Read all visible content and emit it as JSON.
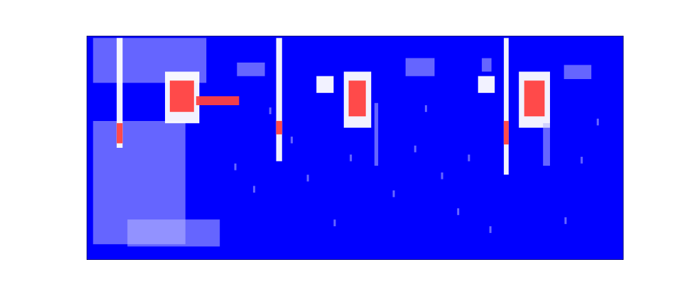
{
  "chart_data": {
    "type": "heatmap",
    "color": "#0000ff",
    "tick_labels": false,
    "grid": false,
    "xlim": [
      0,
      100
    ],
    "ylim": [
      0,
      100
    ],
    "xticks": [],
    "yticks": [],
    "cells": [
      {
        "x0": 1.2,
        "x1": 22.3,
        "y0": 79,
        "y1": 99,
        "value": 1
      },
      {
        "x0": 1.2,
        "x1": 18.4,
        "y0": 7,
        "y1": 62,
        "value": 1
      },
      {
        "x0": 7.6,
        "x1": 24.8,
        "y0": 6,
        "y1": 18,
        "value": 1
      },
      {
        "x0": 5.6,
        "x1": 6.7,
        "y0": 50,
        "y1": 99,
        "value": 2
      },
      {
        "x0": 5.6,
        "x1": 6.7,
        "y0": 52,
        "y1": 61,
        "value": 3
      },
      {
        "x0": 14.6,
        "x1": 21,
        "y0": 61,
        "y1": 84,
        "value": 2
      },
      {
        "x0": 15.5,
        "x1": 20,
        "y0": 66,
        "y1": 80,
        "value": 3
      },
      {
        "x0": 20.4,
        "x1": 28.4,
        "y0": 69,
        "y1": 73,
        "value": 3
      },
      {
        "x0": 28,
        "x1": 33.2,
        "y0": 82,
        "y1": 88,
        "value": 1
      },
      {
        "x0": 35.3,
        "x1": 36.4,
        "y0": 44,
        "y1": 99,
        "value": 2
      },
      {
        "x0": 35.3,
        "x1": 36.4,
        "y0": 56,
        "y1": 62,
        "value": 3
      },
      {
        "x0": 42.8,
        "x1": 46,
        "y0": 74.5,
        "y1": 82,
        "value": 2
      },
      {
        "x0": 47.9,
        "x1": 53,
        "y0": 59,
        "y1": 84,
        "value": 2
      },
      {
        "x0": 48.8,
        "x1": 52,
        "y0": 64,
        "y1": 80,
        "value": 3
      },
      {
        "x0": 59.4,
        "x1": 64.8,
        "y0": 82,
        "y1": 90,
        "value": 1
      },
      {
        "x0": 72.9,
        "x1": 76,
        "y0": 74.5,
        "y1": 82,
        "value": 2
      },
      {
        "x0": 73.6,
        "x1": 75.4,
        "y0": 84,
        "y1": 90,
        "value": 1
      },
      {
        "x0": 77.7,
        "x1": 78.6,
        "y0": 38,
        "y1": 99,
        "value": 2
      },
      {
        "x0": 77.7,
        "x1": 78.6,
        "y0": 51.5,
        "y1": 62,
        "value": 3
      },
      {
        "x0": 80.5,
        "x1": 86.3,
        "y0": 59,
        "y1": 84,
        "value": 2
      },
      {
        "x0": 81.5,
        "x1": 85.3,
        "y0": 64,
        "y1": 80,
        "value": 3
      },
      {
        "x0": 88.9,
        "x1": 94,
        "y0": 80.7,
        "y1": 87,
        "value": 1
      },
      {
        "x0": 53.6,
        "x1": 54.3,
        "y0": 42,
        "y1": 70,
        "value": 1
      },
      {
        "x0": 85,
        "x1": 86.3,
        "y0": 42,
        "y1": 61,
        "value": 1
      },
      {
        "x0": 27.5,
        "x1": 27.9,
        "y0": 40,
        "y1": 43,
        "value": 1
      },
      {
        "x0": 31,
        "x1": 31.4,
        "y0": 30,
        "y1": 33,
        "value": 1
      },
      {
        "x0": 38,
        "x1": 38.4,
        "y0": 52,
        "y1": 55,
        "value": 1
      },
      {
        "x0": 41,
        "x1": 41.4,
        "y0": 35,
        "y1": 38,
        "value": 1
      },
      {
        "x0": 46,
        "x1": 46.4,
        "y0": 15,
        "y1": 18,
        "value": 1
      },
      {
        "x0": 49,
        "x1": 49.4,
        "y0": 44,
        "y1": 47,
        "value": 1
      },
      {
        "x0": 57,
        "x1": 57.4,
        "y0": 28,
        "y1": 31,
        "value": 1
      },
      {
        "x0": 61,
        "x1": 61.4,
        "y0": 48,
        "y1": 51,
        "value": 1
      },
      {
        "x0": 66,
        "x1": 66.4,
        "y0": 36,
        "y1": 39,
        "value": 1
      },
      {
        "x0": 69,
        "x1": 69.4,
        "y0": 20,
        "y1": 23,
        "value": 1
      },
      {
        "x0": 71,
        "x1": 71.4,
        "y0": 44,
        "y1": 47,
        "value": 1
      },
      {
        "x0": 75,
        "x1": 75.4,
        "y0": 12,
        "y1": 15,
        "value": 1
      },
      {
        "x0": 89,
        "x1": 89.4,
        "y0": 16,
        "y1": 19,
        "value": 1
      },
      {
        "x0": 92,
        "x1": 92.4,
        "y0": 43,
        "y1": 46,
        "value": 1
      },
      {
        "x0": 95,
        "x1": 95.4,
        "y0": 60,
        "y1": 63,
        "value": 1
      },
      {
        "x0": 34,
        "x1": 34.4,
        "y0": 65,
        "y1": 68,
        "value": 1
      },
      {
        "x0": 63,
        "x1": 63.4,
        "y0": 66,
        "y1": 69,
        "value": 1
      }
    ]
  }
}
